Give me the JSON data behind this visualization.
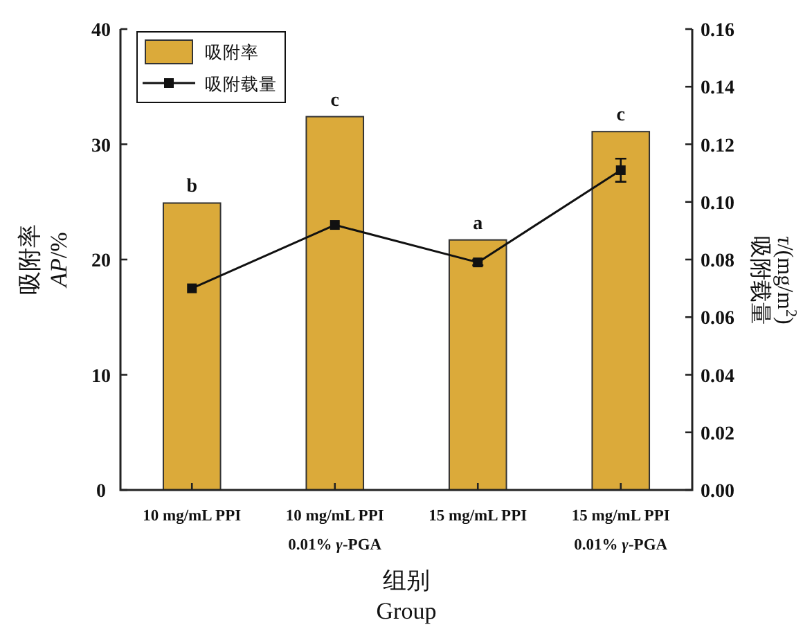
{
  "chart_data": {
    "type": "bar",
    "categories": [
      "10 mg/mL PPI",
      "10 mg/mL PPI\n0.01% *γ*-PGA",
      "15 mg/mL PPI",
      "15 mg/mL PPI\n0.01% *γ*-PGA"
    ],
    "series": [
      {
        "name": "吸附率",
        "color": "#dbaa3a",
        "values": [
          24.9,
          32.4,
          21.7,
          31.1
        ]
      },
      {
        "name": "吸附载量",
        "type": "line",
        "axis": "y2",
        "color": "#111111",
        "marker": "square",
        "values": [
          0.07,
          0.092,
          0.079,
          0.111
        ],
        "errors": [
          null,
          null,
          0.001,
          0.004
        ]
      }
    ],
    "xlabel": "组别\nGroup",
    "ylabel": "吸附率\n*AP*/%",
    "y2label": "吸附载量\n*τ*/(mg/m$^{2}$)",
    "ylim": [
      0,
      40
    ],
    "yticks": [
      0,
      10,
      20,
      30,
      40
    ],
    "y2lim": [
      0,
      0.16
    ],
    "y2ticks": [
      {
        "value": 0,
        "label": "0.00"
      },
      {
        "value": 0.02,
        "label": "0.02"
      },
      {
        "value": 0.04,
        "label": "0.04"
      },
      {
        "value": 0.06,
        "label": "0.06"
      },
      {
        "value": 0.08,
        "label": "0.08"
      },
      {
        "value": 0.1,
        "label": "0.10"
      },
      {
        "value": 0.12,
        "label": "0.12"
      },
      {
        "value": 0.14,
        "label": "0.14"
      },
      {
        "value": 0.16,
        "label": "0.16"
      }
    ],
    "annotations": [
      {
        "text": "b",
        "x": "10 mg/mL PPI",
        "y": 24.9
      },
      {
        "text": "c",
        "x": "10 mg/mL PPI\n0.01% *γ*-PGA",
        "y": 32.4
      },
      {
        "text": "a",
        "x": "15 mg/mL PPI",
        "y": 21.7
      },
      {
        "text": "c",
        "x": "15 mg/mL PPI\n0.01% *γ*-PGA",
        "y": 31.1
      }
    ],
    "legend": "top left",
    "grid": false
  }
}
